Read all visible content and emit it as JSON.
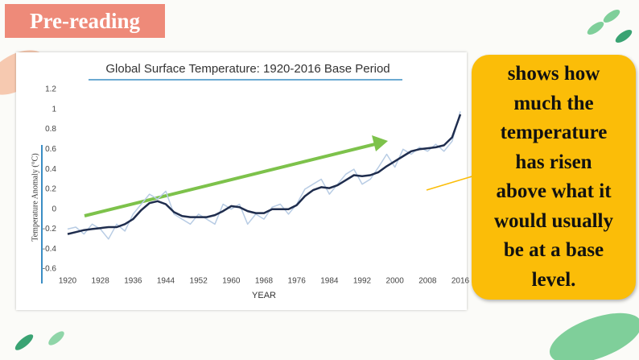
{
  "header": {
    "title": "Pre-reading"
  },
  "callout": {
    "lines": [
      "shows how",
      "much the",
      "temperature",
      "has risen",
      "above what it",
      "would usually",
      "be at a base",
      "level."
    ]
  },
  "chart_data": {
    "type": "line",
    "title": "Global Surface Temperature: 1920-2016 Base Period",
    "x_label": "YEAR",
    "y_label": "Temperature Anomaly (°C)",
    "x": [
      1920,
      1922,
      1924,
      1926,
      1928,
      1930,
      1932,
      1934,
      1936,
      1938,
      1940,
      1942,
      1944,
      1946,
      1948,
      1950,
      1952,
      1954,
      1956,
      1958,
      1960,
      1962,
      1964,
      1966,
      1968,
      1970,
      1972,
      1974,
      1976,
      1978,
      1980,
      1982,
      1984,
      1986,
      1988,
      1990,
      1992,
      1994,
      1996,
      1998,
      2000,
      2002,
      2004,
      2006,
      2008,
      2010,
      2012,
      2014,
      2016
    ],
    "series": [
      {
        "color": "#b8cce4",
        "width": 1.5,
        "values": [
          -0.2,
          -0.18,
          -0.25,
          -0.15,
          -0.2,
          -0.3,
          -0.15,
          -0.22,
          -0.05,
          0.05,
          0.15,
          0.1,
          0.18,
          -0.05,
          -0.1,
          -0.15,
          -0.05,
          -0.1,
          -0.15,
          0.05,
          0.0,
          0.05,
          -0.15,
          -0.05,
          -0.1,
          0.02,
          0.05,
          -0.05,
          0.05,
          0.2,
          0.25,
          0.3,
          0.15,
          0.25,
          0.35,
          0.4,
          0.25,
          0.3,
          0.42,
          0.55,
          0.42,
          0.6,
          0.55,
          0.62,
          0.58,
          0.65,
          0.58,
          0.68,
          0.98
        ]
      },
      {
        "color": "#1f2d4e",
        "width": 2.5,
        "values": [
          -0.25,
          -0.23,
          -0.21,
          -0.2,
          -0.19,
          -0.18,
          -0.18,
          -0.15,
          -0.1,
          -0.01,
          0.06,
          0.08,
          0.05,
          -0.03,
          -0.07,
          -0.08,
          -0.08,
          -0.08,
          -0.06,
          -0.02,
          0.03,
          0.02,
          -0.02,
          -0.04,
          -0.04,
          0.0,
          0.0,
          0.0,
          0.04,
          0.13,
          0.19,
          0.22,
          0.21,
          0.24,
          0.29,
          0.34,
          0.33,
          0.34,
          0.37,
          0.43,
          0.48,
          0.53,
          0.58,
          0.6,
          0.61,
          0.62,
          0.64,
          0.72,
          0.95
        ]
      }
    ],
    "xlim": [
      1920,
      2016
    ],
    "xticks": [
      1920,
      1928,
      1936,
      1944,
      1952,
      1960,
      1968,
      1976,
      1984,
      1992,
      2000,
      2008,
      2016
    ],
    "ylim": [
      -0.6,
      1.2
    ],
    "yticks": [
      -0.6,
      -0.4,
      -0.2,
      0,
      0.2,
      0.4,
      0.6,
      0.8,
      1,
      1.2
    ],
    "grid": false
  }
}
